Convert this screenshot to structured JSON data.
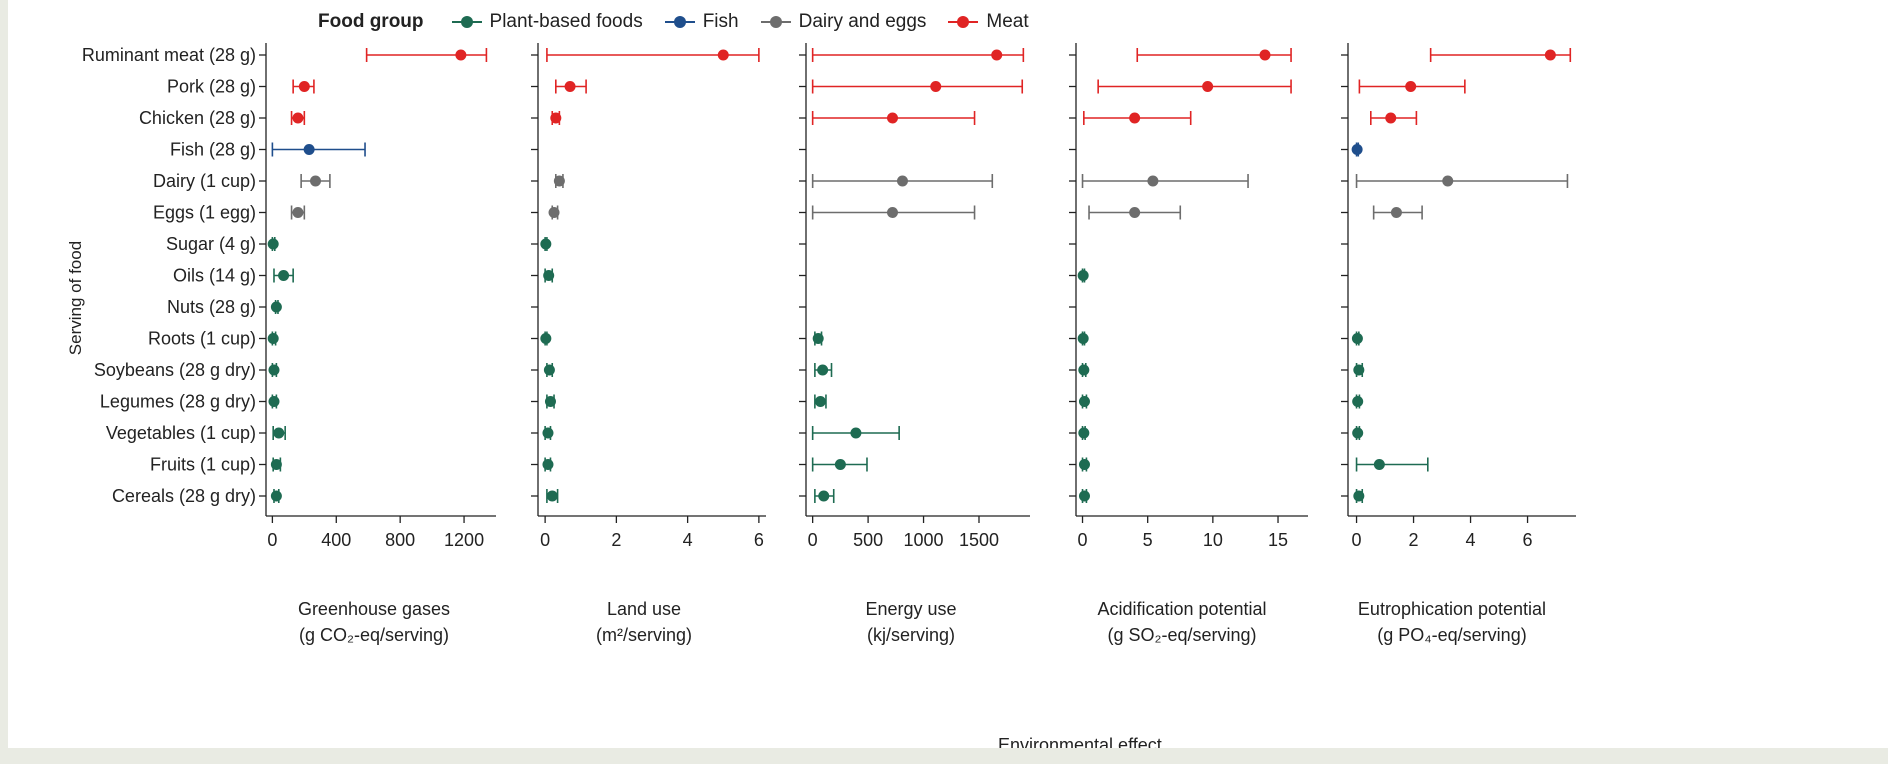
{
  "legend": {
    "title": "Food group",
    "items": [
      {
        "name": "Plant-based foods",
        "color": "#1e6b52"
      },
      {
        "name": "Fish",
        "color": "#1f4e8c"
      },
      {
        "name": "Dairy and eggs",
        "color": "#6d6d6d"
      },
      {
        "name": "Meat",
        "color": "#e02424"
      }
    ]
  },
  "axis": {
    "y_title": "Serving of food",
    "x_title": "Environmental effect"
  },
  "chart_data": {
    "type": "scatter",
    "categories": [
      "Ruminant meat (28 g)",
      "Pork (28 g)",
      "Chicken (28 g)",
      "Fish (28 g)",
      "Dairy (1 cup)",
      "Eggs (1 egg)",
      "Sugar (4 g)",
      "Oils (14 g)",
      "Nuts (28 g)",
      "Roots (1 cup)",
      "Soybeans (28 g dry)",
      "Legumes (28 g dry)",
      "Vegetables (1 cup)",
      "Fruits (1 cup)",
      "Cereals (28 g dry)"
    ],
    "groups": [
      "meat",
      "meat",
      "meat",
      "fish",
      "dairy",
      "dairy",
      "plant",
      "plant",
      "plant",
      "plant",
      "plant",
      "plant",
      "plant",
      "plant",
      "plant"
    ],
    "panels": [
      {
        "label_line1": "Greenhouse gases",
        "label_line2": "(g CO₂-eq/serving)",
        "xlim": [
          -40,
          1400
        ],
        "ticks": [
          0,
          400,
          800,
          1200
        ],
        "tick_labels": [
          "0",
          "400",
          "800",
          "1200"
        ],
        "points": [
          {
            "v": 1180,
            "lo": 590,
            "hi": 1340
          },
          {
            "v": 200,
            "lo": 130,
            "hi": 260
          },
          {
            "v": 160,
            "lo": 120,
            "hi": 200
          },
          {
            "v": 230,
            "lo": 0,
            "hi": 580
          },
          {
            "v": 270,
            "lo": 180,
            "hi": 360
          },
          {
            "v": 160,
            "lo": 120,
            "hi": 200
          },
          {
            "v": 5,
            "lo": 0,
            "hi": 15
          },
          {
            "v": 70,
            "lo": 10,
            "hi": 130
          },
          {
            "v": 25,
            "lo": 20,
            "hi": 35
          },
          {
            "v": 5,
            "lo": 0,
            "hi": 20
          },
          {
            "v": 10,
            "lo": 0,
            "hi": 25
          },
          {
            "v": 10,
            "lo": 0,
            "hi": 25
          },
          {
            "v": 40,
            "lo": 5,
            "hi": 80
          },
          {
            "v": 25,
            "lo": 5,
            "hi": 50
          },
          {
            "v": 25,
            "lo": 10,
            "hi": 40
          }
        ]
      },
      {
        "label_line1": "Land use",
        "label_line2": "(m²/serving)",
        "xlim": [
          -0.2,
          6.2
        ],
        "ticks": [
          0,
          2,
          4,
          6
        ],
        "tick_labels": [
          "0",
          "2",
          "4",
          "6"
        ],
        "points": [
          {
            "v": 5.0,
            "lo": 0.05,
            "hi": 6.0
          },
          {
            "v": 0.7,
            "lo": 0.3,
            "hi": 1.15
          },
          {
            "v": 0.3,
            "lo": 0.2,
            "hi": 0.4
          },
          null,
          {
            "v": 0.4,
            "lo": 0.3,
            "hi": 0.5
          },
          {
            "v": 0.25,
            "lo": 0.2,
            "hi": 0.35
          },
          {
            "v": 0.02,
            "lo": 0.0,
            "hi": 0.05
          },
          {
            "v": 0.1,
            "lo": 0.0,
            "hi": 0.2
          },
          null,
          {
            "v": 0.02,
            "lo": 0.0,
            "hi": 0.05
          },
          {
            "v": 0.12,
            "lo": 0.05,
            "hi": 0.2
          },
          {
            "v": 0.15,
            "lo": 0.05,
            "hi": 0.25
          },
          {
            "v": 0.08,
            "lo": 0.0,
            "hi": 0.15
          },
          {
            "v": 0.08,
            "lo": 0.0,
            "hi": 0.15
          },
          {
            "v": 0.2,
            "lo": 0.05,
            "hi": 0.35
          }
        ]
      },
      {
        "label_line1": "Energy use",
        "label_line2": "(kj/serving)",
        "xlim": [
          -60,
          1960
        ],
        "ticks": [
          0,
          500,
          1000,
          1500
        ],
        "tick_labels": [
          "0",
          "500",
          "1000",
          "1500"
        ],
        "points": [
          {
            "v": 1660,
            "lo": 0,
            "hi": 1900
          },
          {
            "v": 1110,
            "lo": 0,
            "hi": 1890
          },
          {
            "v": 720,
            "lo": 0,
            "hi": 1460
          },
          null,
          {
            "v": 810,
            "lo": 0,
            "hi": 1620
          },
          {
            "v": 720,
            "lo": 0,
            "hi": 1460
          },
          null,
          null,
          null,
          {
            "v": 50,
            "lo": 20,
            "hi": 80
          },
          {
            "v": 90,
            "lo": 20,
            "hi": 170
          },
          {
            "v": 70,
            "lo": 20,
            "hi": 120
          },
          {
            "v": 390,
            "lo": 0,
            "hi": 780
          },
          {
            "v": 250,
            "lo": 0,
            "hi": 490
          },
          {
            "v": 100,
            "lo": 20,
            "hi": 190
          }
        ]
      },
      {
        "label_line1": "Acidification potential",
        "label_line2": "(g SO₂-eq/serving)",
        "xlim": [
          -0.5,
          17.3
        ],
        "ticks": [
          0,
          5,
          10,
          15
        ],
        "tick_labels": [
          "0",
          "5",
          "10",
          "15"
        ],
        "points": [
          {
            "v": 14.0,
            "lo": 4.2,
            "hi": 16.0
          },
          {
            "v": 9.6,
            "lo": 1.2,
            "hi": 16.0
          },
          {
            "v": 4.0,
            "lo": 0.1,
            "hi": 8.3
          },
          null,
          {
            "v": 5.4,
            "lo": 0.0,
            "hi": 12.7
          },
          {
            "v": 4.0,
            "lo": 0.5,
            "hi": 7.5
          },
          null,
          {
            "v": 0.05,
            "lo": 0.0,
            "hi": 0.15
          },
          null,
          {
            "v": 0.05,
            "lo": 0.0,
            "hi": 0.15
          },
          {
            "v": 0.1,
            "lo": 0.0,
            "hi": 0.25
          },
          {
            "v": 0.15,
            "lo": 0.0,
            "hi": 0.3
          },
          {
            "v": 0.1,
            "lo": 0.0,
            "hi": 0.2
          },
          {
            "v": 0.15,
            "lo": 0.0,
            "hi": 0.3
          },
          {
            "v": 0.15,
            "lo": 0.0,
            "hi": 0.3
          }
        ]
      },
      {
        "label_line1": "Eutrophication potential",
        "label_line2": "(g PO₄-eq/serving)",
        "xlim": [
          -0.3,
          7.7
        ],
        "ticks": [
          0,
          2,
          4,
          6
        ],
        "tick_labels": [
          "0",
          "2",
          "4",
          "6"
        ],
        "points": [
          {
            "v": 6.8,
            "lo": 2.6,
            "hi": 7.5
          },
          {
            "v": 1.9,
            "lo": 0.1,
            "hi": 3.8
          },
          {
            "v": 1.2,
            "lo": 0.5,
            "hi": 2.1
          },
          {
            "v": 0.02,
            "lo": 0.0,
            "hi": 0.06
          },
          {
            "v": 3.2,
            "lo": 0.0,
            "hi": 7.4
          },
          {
            "v": 1.4,
            "lo": 0.6,
            "hi": 2.3
          },
          null,
          null,
          null,
          {
            "v": 0.03,
            "lo": 0.0,
            "hi": 0.08
          },
          {
            "v": 0.08,
            "lo": 0.0,
            "hi": 0.2
          },
          {
            "v": 0.04,
            "lo": 0.0,
            "hi": 0.1
          },
          {
            "v": 0.04,
            "lo": 0.0,
            "hi": 0.1
          },
          {
            "v": 0.8,
            "lo": 0.0,
            "hi": 2.5
          },
          {
            "v": 0.08,
            "lo": 0.0,
            "hi": 0.2
          }
        ]
      }
    ],
    "group_colors": {
      "plant": "#1e6b52",
      "fish": "#1f4e8c",
      "dairy": "#6d6d6d",
      "meat": "#e02424"
    }
  }
}
